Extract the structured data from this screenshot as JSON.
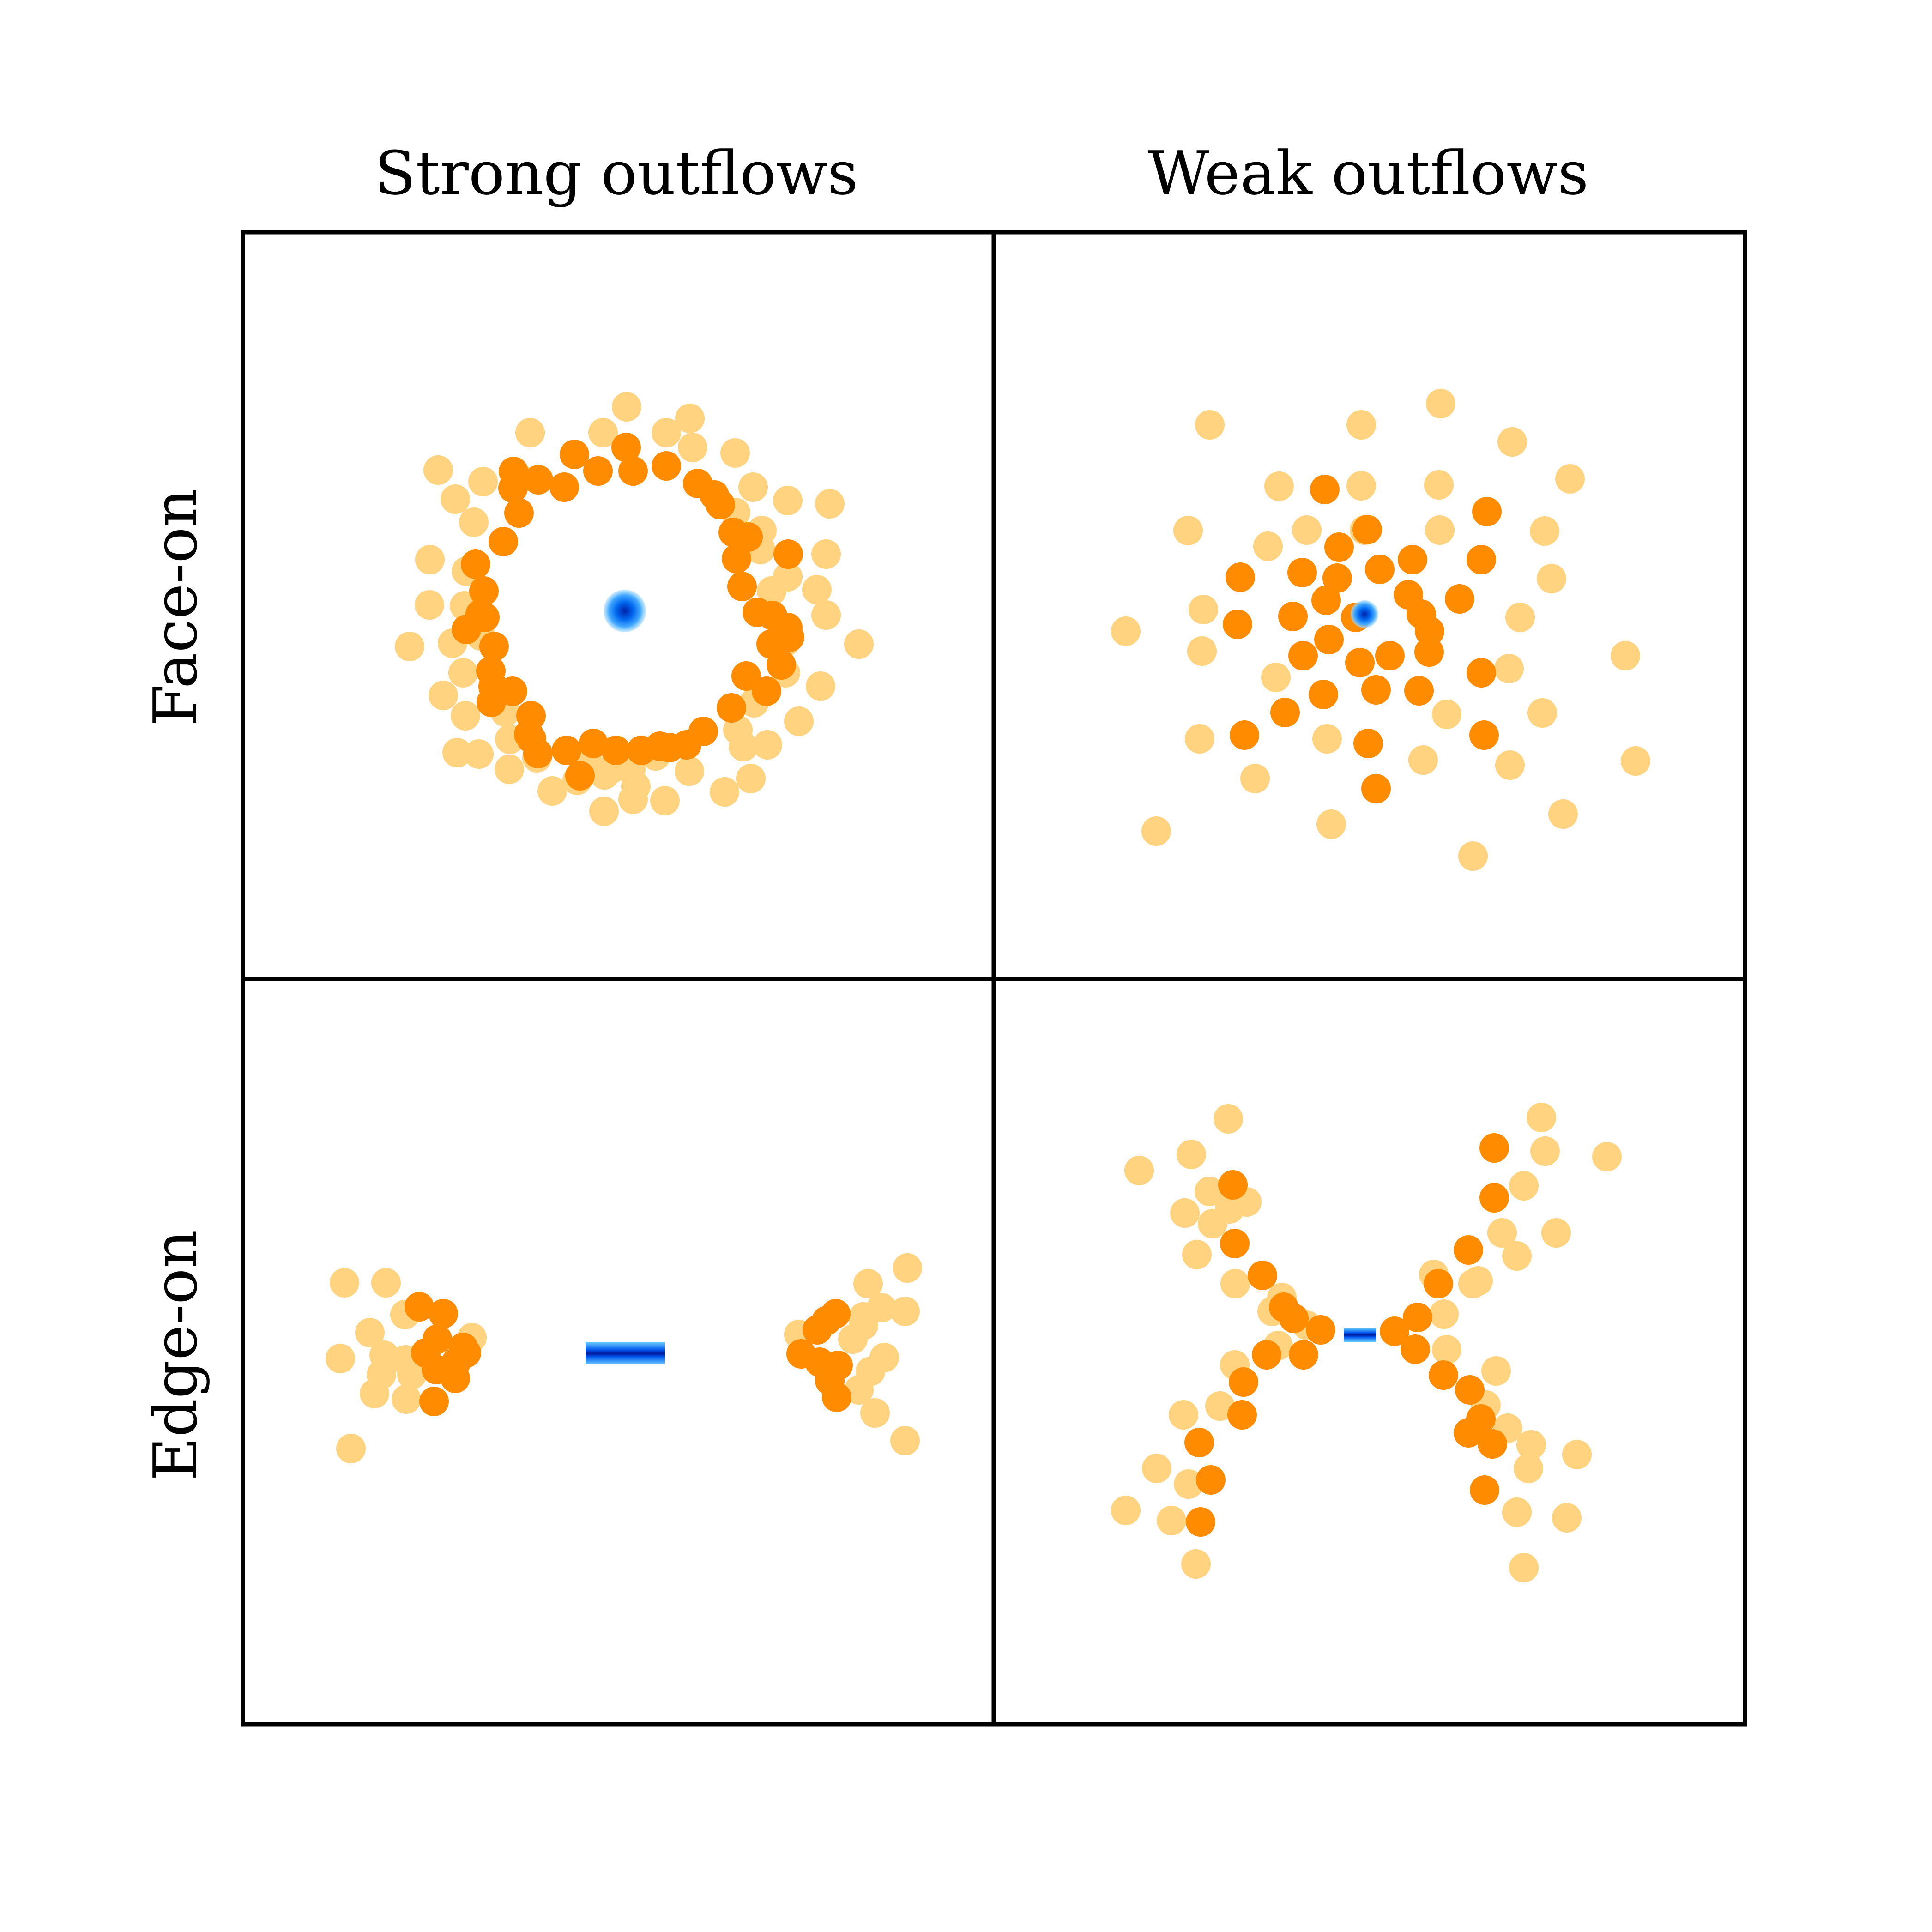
{
  "columns": [
    {
      "label": "Strong outflows"
    },
    {
      "label": "Weak outflows"
    }
  ],
  "rows": [
    {
      "label": "Face-on"
    },
    {
      "label": "Edge-on"
    }
  ],
  "colors": {
    "dark_orange": "#ff8c00",
    "light_orange": "#ffd37f",
    "core_blue": "#0044dd",
    "core_glow": "#55bbff",
    "frame": "#000000",
    "background": "#ffffff"
  }
}
